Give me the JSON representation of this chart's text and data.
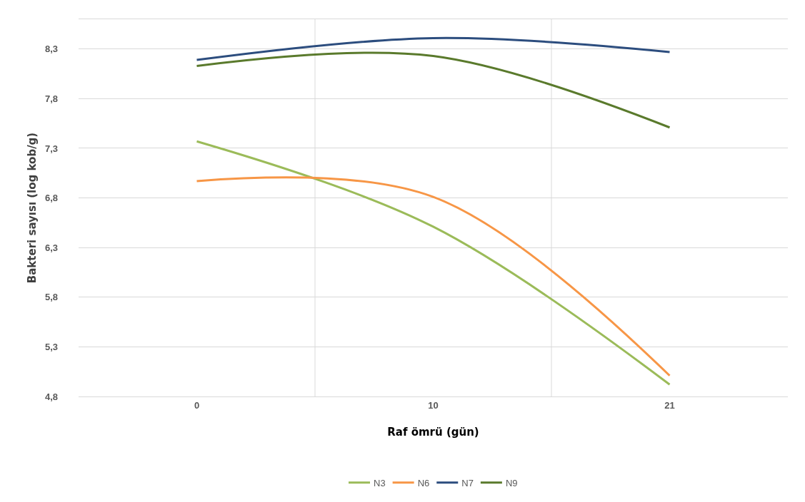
{
  "chart_data": {
    "type": "line",
    "xlabel": "Raf ömrü (gün)",
    "ylabel": "Bakteri sayısı (log kob/g)",
    "categories": [
      "0",
      "10",
      "21"
    ],
    "series": [
      {
        "name": "N3",
        "color": "#9bbb59",
        "values": [
          7.37,
          6.51,
          4.92
        ]
      },
      {
        "name": "N6",
        "color": "#f79646",
        "values": [
          6.97,
          6.81,
          5.01
        ]
      },
      {
        "name": "N7",
        "color": "#2c4d7e",
        "values": [
          8.19,
          8.41,
          8.27
        ]
      },
      {
        "name": "N9",
        "color": "#5a7a2c",
        "values": [
          8.13,
          8.23,
          7.51
        ]
      }
    ],
    "ylim": [
      4.8,
      8.6
    ],
    "yticks": [
      {
        "value": 4.8,
        "label": "4,8"
      },
      {
        "value": 5.3,
        "label": "5,3"
      },
      {
        "value": 5.8,
        "label": "5,8"
      },
      {
        "value": 6.3,
        "label": "6,3"
      },
      {
        "value": 6.8,
        "label": "6,8"
      },
      {
        "value": 7.3,
        "label": "7,3"
      },
      {
        "value": 7.8,
        "label": "7,8"
      },
      {
        "value": 8.3,
        "label": "8,3"
      }
    ],
    "grid": true,
    "legend": "bottom",
    "marker": "none",
    "line_style": "solid"
  }
}
